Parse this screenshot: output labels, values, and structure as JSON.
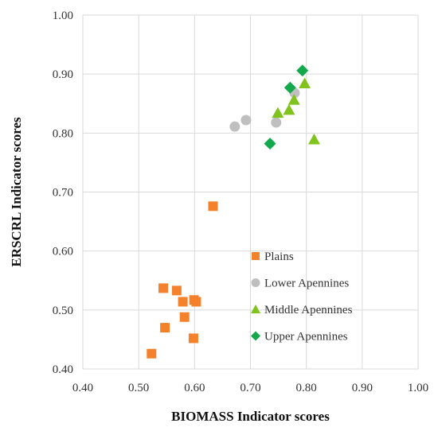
{
  "chart_data": {
    "type": "scatter",
    "xlabel": "BIOMASS Indicator scores",
    "ylabel": "ERSCRL Indicator scores",
    "xlim": [
      0.4,
      1.0
    ],
    "ylim": [
      0.4,
      1.0
    ],
    "x_ticks": [
      "0.40",
      "0.50",
      "0.60",
      "0.70",
      "0.80",
      "0.90",
      "1.00"
    ],
    "y_ticks": [
      "0.40",
      "0.50",
      "0.60",
      "0.70",
      "0.80",
      "0.90",
      "1.00"
    ],
    "grid": true,
    "legend_position": "bottom-right inside",
    "series": [
      {
        "name": "Plains",
        "marker": "square",
        "color": "#F4812B",
        "points": [
          [
            0.633,
            0.676
          ],
          [
            0.544,
            0.537
          ],
          [
            0.568,
            0.533
          ],
          [
            0.579,
            0.514
          ],
          [
            0.599,
            0.517
          ],
          [
            0.603,
            0.514
          ],
          [
            0.582,
            0.488
          ],
          [
            0.547,
            0.47
          ],
          [
            0.598,
            0.452
          ],
          [
            0.523,
            0.426
          ]
        ]
      },
      {
        "name": "Lower Apennines",
        "marker": "circle",
        "color": "#BFBFBF",
        "points": [
          [
            0.672,
            0.811
          ],
          [
            0.692,
            0.822
          ],
          [
            0.746,
            0.818
          ],
          [
            0.779,
            0.868
          ]
        ]
      },
      {
        "name": "Middle Apennines",
        "marker": "triangle",
        "color": "#7FC31C",
        "points": [
          [
            0.749,
            0.834
          ],
          [
            0.769,
            0.839
          ],
          [
            0.778,
            0.856
          ],
          [
            0.797,
            0.884
          ],
          [
            0.814,
            0.789
          ]
        ]
      },
      {
        "name": "Upper Apennines",
        "marker": "diamond",
        "color": "#12A84B",
        "points": [
          [
            0.735,
            0.782
          ],
          [
            0.771,
            0.877
          ],
          [
            0.793,
            0.906
          ]
        ]
      }
    ]
  }
}
